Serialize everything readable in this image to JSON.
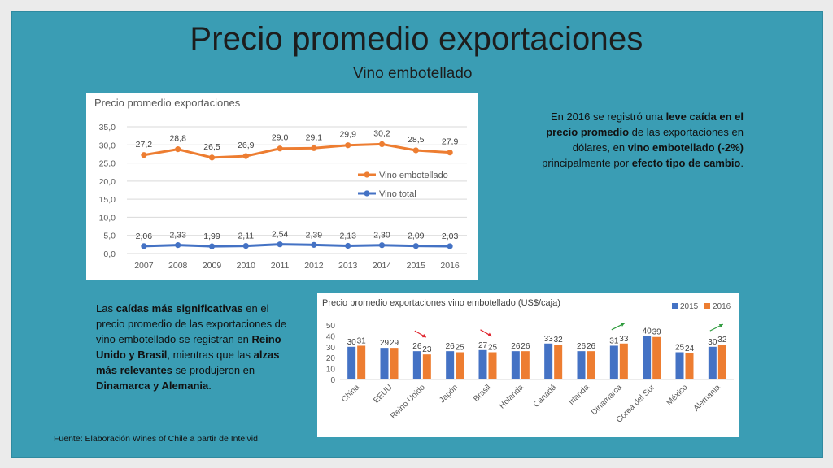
{
  "slide": {
    "title": "Precio promedio exportaciones",
    "subtitle": "Vino embotellado",
    "text_right": [
      {
        "t": "En 2016 se registró una ",
        "b": false
      },
      {
        "t": "leve caída en el precio promedio",
        "b": true
      },
      {
        "t": " de las exportaciones en dólares,  en ",
        "b": false
      },
      {
        "t": "vino embotellado (-2%)",
        "b": true
      },
      {
        "t": " principalmente por ",
        "b": false
      },
      {
        "t": "efecto tipo de cambio",
        "b": true
      },
      {
        "t": ".",
        "b": false
      }
    ],
    "text_left": [
      {
        "t": " Las ",
        "b": false
      },
      {
        "t": "caídas más significativas",
        "b": true
      },
      {
        "t": " en el precio promedio de las exportaciones de vino embotellado se registran en ",
        "b": false
      },
      {
        "t": "Reino Unido y Brasil",
        "b": true
      },
      {
        "t": ", mientras que las ",
        "b": false
      },
      {
        "t": "alzas más relevantes",
        "b": true
      },
      {
        "t": " se produjeron en ",
        "b": false
      },
      {
        "t": "Dinamarca y Alemania",
        "b": true
      },
      {
        "t": ".",
        "b": false
      }
    ],
    "source": "Fuente: Elaboración Wines of Chile a partir de Intelvid."
  },
  "colors": {
    "orange": "#ed7d31",
    "blue": "#4472c4",
    "red": "#e0262f",
    "green": "#2e9b3d"
  },
  "chart_data": [
    {
      "type": "line",
      "title": "Precio promedio exportaciones",
      "x": [
        "2007",
        "2008",
        "2009",
        "2010",
        "2011",
        "2012",
        "2013",
        "2014",
        "2015",
        "2016"
      ],
      "ylim": [
        0,
        35
      ],
      "yticks": [
        "0,0",
        "5,0",
        "10,0",
        "15,0",
        "20,0",
        "25,0",
        "30,0",
        "35,0"
      ],
      "grid": true,
      "legend": "right",
      "series": [
        {
          "name": "Vino embotellado",
          "color": "#ed7d31",
          "values": [
            27.2,
            28.8,
            26.5,
            26.9,
            29.0,
            29.1,
            29.9,
            30.2,
            28.5,
            27.9
          ],
          "labels": [
            "27,2",
            "28,8",
            "26,5",
            "26,9",
            "29,0",
            "29,1",
            "29,9",
            "30,2",
            "28,5",
            "27,9"
          ]
        },
        {
          "name": "Vino total",
          "color": "#4472c4",
          "values": [
            2.06,
            2.33,
            1.99,
            2.11,
            2.54,
            2.39,
            2.13,
            2.3,
            2.09,
            2.03
          ],
          "labels": [
            "2,06",
            "2,33",
            "1,99",
            "2,11",
            "2,54",
            "2,39",
            "2,13",
            "2,30",
            "2,09",
            "2,03"
          ]
        }
      ]
    },
    {
      "type": "bar",
      "title": "Precio promedio exportaciones vino embotellado (US$/caja)",
      "categories": [
        "China",
        "EEUU",
        "Reino Unido",
        "Japón",
        "Brasil",
        "Holanda",
        "Canadá",
        "Irlanda",
        "Dinamarca",
        "Corea del Sur",
        "México",
        "Alemania"
      ],
      "ylim": [
        0,
        50
      ],
      "yticks": [
        "0",
        "10",
        "20",
        "30",
        "40",
        "50"
      ],
      "legend": "top-right",
      "series": [
        {
          "name": "2015",
          "color": "#4472c4",
          "values": [
            30,
            29,
            26,
            26,
            27,
            26,
            33,
            26,
            31,
            40,
            25,
            30
          ]
        },
        {
          "name": "2016",
          "color": "#ed7d31",
          "values": [
            31,
            29,
            23,
            25,
            25,
            26,
            32,
            26,
            33,
            39,
            24,
            32
          ]
        }
      ],
      "arrows": [
        {
          "category": "Reino Unido",
          "direction": "down",
          "color": "red"
        },
        {
          "category": "Brasil",
          "direction": "down",
          "color": "red"
        },
        {
          "category": "Dinamarca",
          "direction": "up",
          "color": "green"
        },
        {
          "category": "Alemania",
          "direction": "up",
          "color": "green"
        }
      ]
    }
  ]
}
